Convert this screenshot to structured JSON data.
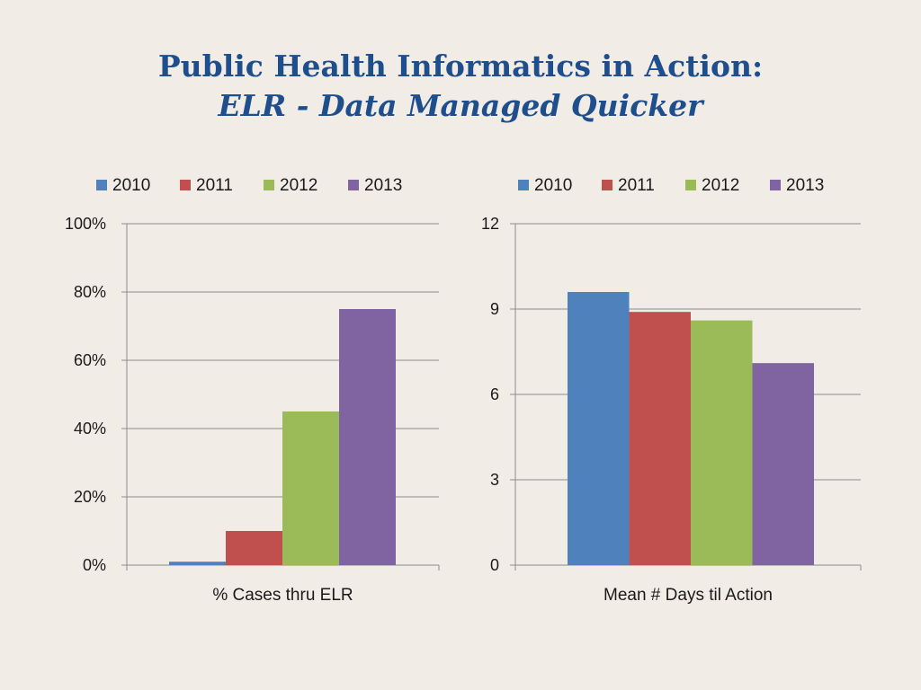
{
  "slide": {
    "title_line1": "Public Health Informatics in Action:",
    "title_line2": "ELR - Data Managed Quicker"
  },
  "colors": {
    "2010": "#4f81bd",
    "2011": "#c0504d",
    "2012": "#9bbb59",
    "2013": "#8064a2",
    "grid": "#8c8c8c",
    "title": "#1f4e8c"
  },
  "chart_data": [
    {
      "type": "bar",
      "categories": [
        "% Cases thru ELR"
      ],
      "series": [
        {
          "name": "2010",
          "values": [
            1
          ]
        },
        {
          "name": "2011",
          "values": [
            10
          ]
        },
        {
          "name": "2012",
          "values": [
            45
          ]
        },
        {
          "name": "2013",
          "values": [
            75
          ]
        }
      ],
      "xlabel": "% Cases thru ELR",
      "ylabel": "",
      "ylim": [
        0,
        100
      ],
      "yticks": [
        0,
        20,
        40,
        60,
        80,
        100
      ],
      "ytick_labels": [
        "0%",
        "20%",
        "40%",
        "60%",
        "80%",
        "100%"
      ],
      "legend": "top",
      "grid": true
    },
    {
      "type": "bar",
      "categories": [
        "Mean # Days til Action"
      ],
      "series": [
        {
          "name": "2010",
          "values": [
            9.6
          ]
        },
        {
          "name": "2011",
          "values": [
            8.9
          ]
        },
        {
          "name": "2012",
          "values": [
            8.6
          ]
        },
        {
          "name": "2013",
          "values": [
            7.1
          ]
        }
      ],
      "xlabel": "Mean # Days til Action",
      "ylabel": "",
      "ylim": [
        0,
        12
      ],
      "yticks": [
        0,
        3,
        6,
        9,
        12
      ],
      "ytick_labels": [
        "0",
        "3",
        "6",
        "9",
        "12"
      ],
      "legend": "top",
      "grid": true
    }
  ]
}
